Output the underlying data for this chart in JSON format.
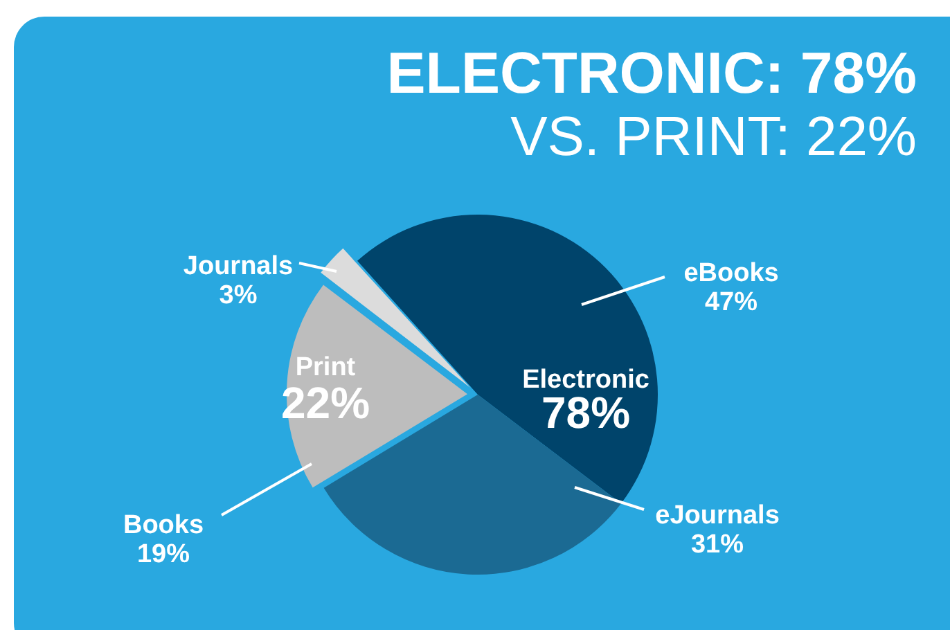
{
  "chart_data": {
    "type": "pie",
    "title": "ELECTRONIC: 78%",
    "subtitle": "VS. PRINT: 22%",
    "categories": [
      "eBooks",
      "eJournals",
      "Books",
      "Journals"
    ],
    "values": [
      47,
      31,
      19,
      3
    ],
    "value_labels": [
      "47%",
      "31%",
      "19%",
      "3%"
    ],
    "colors": [
      "#00446b",
      "#1b6a93",
      "#bdbdbd",
      "#dcdcdc"
    ],
    "annotations": [
      "Electronic",
      "78%",
      "Print",
      "22%"
    ],
    "legend": false
  }
}
